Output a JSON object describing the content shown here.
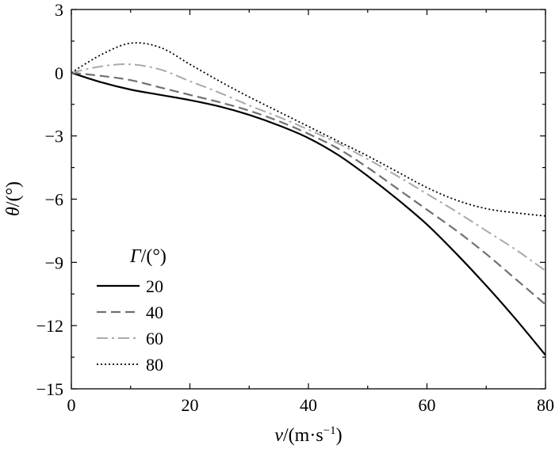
{
  "chart_data": {
    "type": "line",
    "title": "",
    "xlabel": {
      "symbol": "v",
      "unit": "/(m·s",
      "exp": "−1",
      "close": ")"
    },
    "ylabel": {
      "symbol": "θ",
      "unit": "/(°)"
    },
    "xlim": [
      0,
      80
    ],
    "ylim": [
      -15,
      3
    ],
    "xticks": [
      0,
      20,
      40,
      60,
      80
    ],
    "yticks": [
      3,
      0,
      -3,
      -6,
      -9,
      -12,
      -15
    ],
    "xtick_labels": [
      "0",
      "20",
      "40",
      "60",
      "80"
    ],
    "ytick_labels": [
      "3",
      "0",
      "−3",
      "−6",
      "−9",
      "−12",
      "−15"
    ],
    "grid": false,
    "legend": {
      "position": "lower-left",
      "title": {
        "symbol": "Γ",
        "unit": "/(°)"
      }
    },
    "x": [
      0,
      5,
      10,
      15,
      20,
      25,
      30,
      35,
      40,
      45,
      50,
      55,
      60,
      65,
      70,
      75,
      80
    ],
    "series": [
      {
        "name": "20",
        "color": "#000000",
        "dash": "solid",
        "values": [
          0,
          -0.45,
          -0.8,
          -1.05,
          -1.3,
          -1.6,
          -2.0,
          -2.5,
          -3.1,
          -3.9,
          -4.9,
          -6.0,
          -7.2,
          -8.6,
          -10.1,
          -11.7,
          -13.4
        ]
      },
      {
        "name": "40",
        "color": "#707070",
        "dash": "dashed",
        "values": [
          0,
          -0.15,
          -0.35,
          -0.7,
          -1.05,
          -1.4,
          -1.8,
          -2.3,
          -2.9,
          -3.6,
          -4.5,
          -5.5,
          -6.5,
          -7.5,
          -8.6,
          -9.8,
          -11.0
        ]
      },
      {
        "name": "60",
        "color": "#aaaaaa",
        "dash": "dashdot",
        "values": [
          0,
          0.3,
          0.4,
          0.15,
          -0.4,
          -0.95,
          -1.55,
          -2.1,
          -2.7,
          -3.35,
          -4.1,
          -4.9,
          -5.75,
          -6.6,
          -7.5,
          -8.4,
          -9.4
        ]
      },
      {
        "name": "80",
        "color": "#000000",
        "dash": "dotted",
        "values": [
          0,
          0.85,
          1.4,
          1.2,
          0.4,
          -0.4,
          -1.15,
          -1.85,
          -2.55,
          -3.25,
          -3.95,
          -4.7,
          -5.45,
          -6.05,
          -6.45,
          -6.65,
          -6.8
        ]
      }
    ]
  }
}
